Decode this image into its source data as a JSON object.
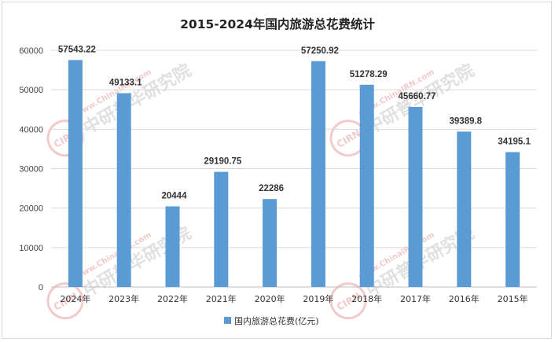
{
  "colors": {
    "bar": "#5b9bd5",
    "grid": "#d9d9d9",
    "axis": "#bfbfbf",
    "watermark_red": "#e8a0a0",
    "watermark_gray": "#c8c8c8"
  },
  "watermark": {
    "site": "www.ChinaIRN.com",
    "brand": "中研普华研究院",
    "logo": "CIRN"
  },
  "chart_data": {
    "type": "bar",
    "title": "2015-2024年国内旅游总花费统计",
    "categories": [
      "2024年",
      "2023年",
      "2022年",
      "2021年",
      "2020年",
      "2019年",
      "2018年",
      "2017年",
      "2016年",
      "2015年"
    ],
    "series": [
      {
        "name": "国内旅游总花费(亿元)",
        "values": [
          57543.22,
          49133.1,
          20444,
          29190.75,
          22286,
          57250.92,
          51278.29,
          45660.77,
          39389.8,
          34195.1
        ],
        "labels": [
          "57543.22",
          "49133.1",
          "20444",
          "29190.75",
          "22286",
          "57250.92",
          "51278.29",
          "45660.77",
          "39389.8",
          "34195.1"
        ]
      }
    ],
    "y_ticks": [
      "0",
      "10000",
      "20000",
      "30000",
      "40000",
      "50000",
      "60000"
    ],
    "ylim": [
      0,
      60000
    ],
    "grid": true,
    "legend_position": "bottom"
  }
}
